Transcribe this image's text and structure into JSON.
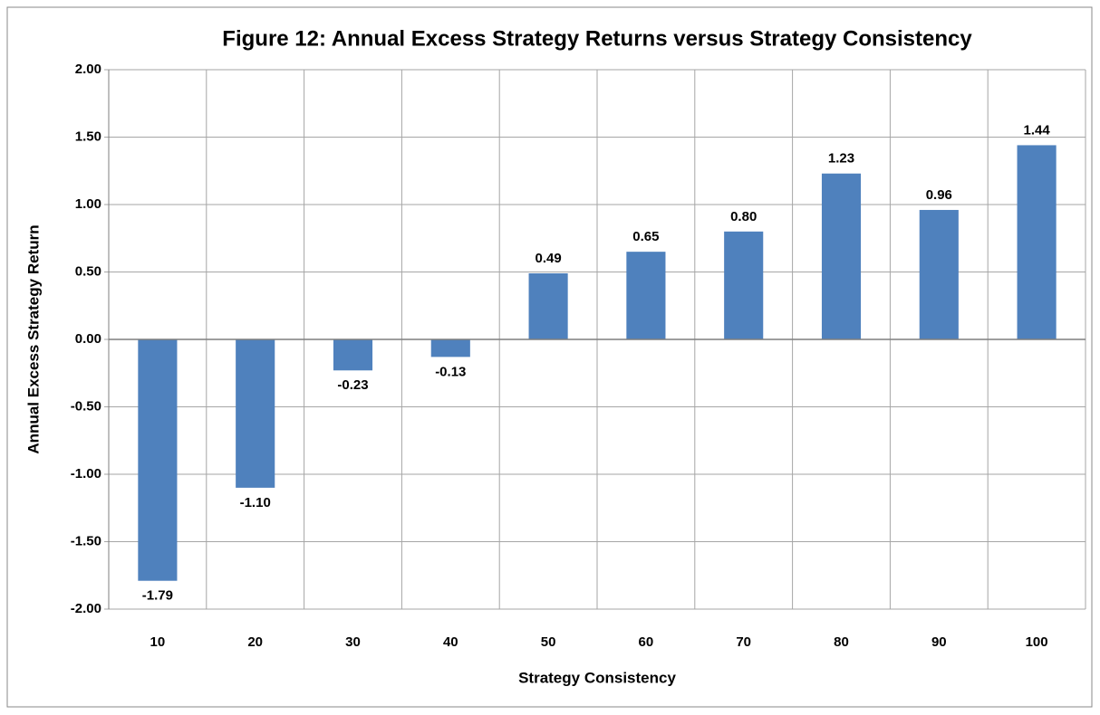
{
  "chart_data": {
    "type": "bar",
    "title": "Figure 12: Annual Excess Strategy Returns versus Strategy Consistency",
    "x_label": "Strategy Consistency",
    "y_label": "Annual Excess Strategy Return",
    "categories": [
      "10",
      "20",
      "30",
      "40",
      "50",
      "60",
      "70",
      "80",
      "90",
      "100"
    ],
    "values": [
      -1.79,
      -1.1,
      -0.23,
      -0.13,
      0.49,
      0.65,
      0.8,
      1.23,
      0.96,
      1.44
    ],
    "value_labels": [
      "-1.79",
      "-1.10",
      "-0.23",
      "-0.13",
      "0.49",
      "0.65",
      "0.80",
      "1.23",
      "0.96",
      "1.44"
    ],
    "color": "#4f81bd",
    "ylim": [
      -2,
      2
    ],
    "yticks": [
      {
        "value": -2,
        "label": "-2.00"
      },
      {
        "value": -1.5,
        "label": "-1.50"
      },
      {
        "value": -1,
        "label": "-1.00"
      },
      {
        "value": -0.5,
        "label": "-0.50"
      },
      {
        "value": 0,
        "label": "0.00"
      },
      {
        "value": 0.5,
        "label": "0.50"
      },
      {
        "value": 1,
        "label": "1.00"
      },
      {
        "value": 1.5,
        "label": "1.50"
      },
      {
        "value": 2,
        "label": "2.00"
      }
    ],
    "grid": true
  }
}
